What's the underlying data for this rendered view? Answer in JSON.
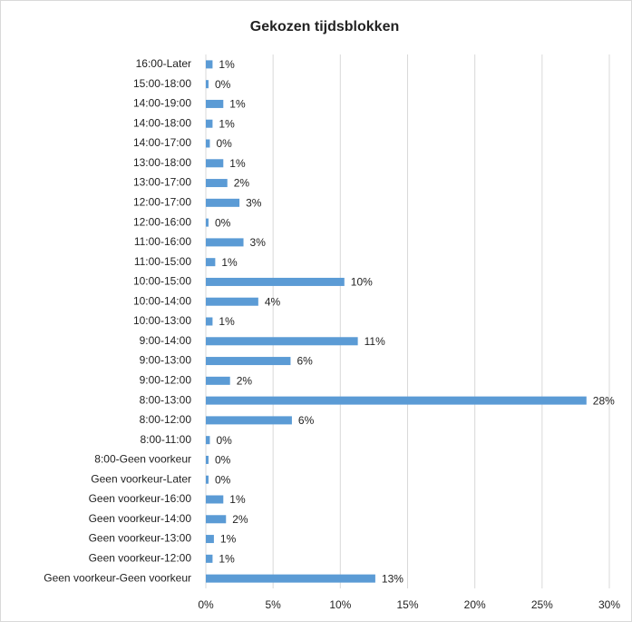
{
  "chart_data": {
    "type": "barh",
    "title": "Gekozen tijdsblokken",
    "categories": [
      "16:00-Later",
      "15:00-18:00",
      "14:00-19:00",
      "14:00-18:00",
      "14:00-17:00",
      "13:00-18:00",
      "13:00-17:00",
      "12:00-17:00",
      "12:00-16:00",
      "11:00-16:00",
      "11:00-15:00",
      "10:00-15:00",
      "10:00-14:00",
      "10:00-13:00",
      "9:00-14:00",
      "9:00-13:00",
      "9:00-12:00",
      "8:00-13:00",
      "8:00-12:00",
      "8:00-11:00",
      "8:00-Geen voorkeur",
      "Geen voorkeur-Later",
      "Geen voorkeur-16:00",
      "Geen voorkeur-14:00",
      "Geen voorkeur-13:00",
      "Geen voorkeur-12:00",
      "Geen voorkeur-Geen voorkeur"
    ],
    "values": [
      0.5,
      0.2,
      1.3,
      0.5,
      0.3,
      1.3,
      1.6,
      2.5,
      0.2,
      2.8,
      0.7,
      10.3,
      3.9,
      0.5,
      11.3,
      6.3,
      1.8,
      28.3,
      6.4,
      0.3,
      0.2,
      0.2,
      1.3,
      1.5,
      0.6,
      0.5,
      12.6
    ],
    "value_labels": [
      "1%",
      "0%",
      "1%",
      "1%",
      "0%",
      "1%",
      "2%",
      "3%",
      "0%",
      "3%",
      "1%",
      "10%",
      "4%",
      "1%",
      "11%",
      "6%",
      "2%",
      "28%",
      "6%",
      "0%",
      "0%",
      "0%",
      "1%",
      "2%",
      "1%",
      "1%",
      "13%"
    ],
    "color": "#5b9bd5",
    "xlim": [
      0,
      30
    ],
    "xticks": [
      {
        "value": 0,
        "label": "0%"
      },
      {
        "value": 5,
        "label": "5%"
      },
      {
        "value": 10,
        "label": "10%"
      },
      {
        "value": 15,
        "label": "15%"
      },
      {
        "value": 20,
        "label": "20%"
      },
      {
        "value": 25,
        "label": "25%"
      },
      {
        "value": 30,
        "label": "30%"
      }
    ],
    "grid": true
  }
}
